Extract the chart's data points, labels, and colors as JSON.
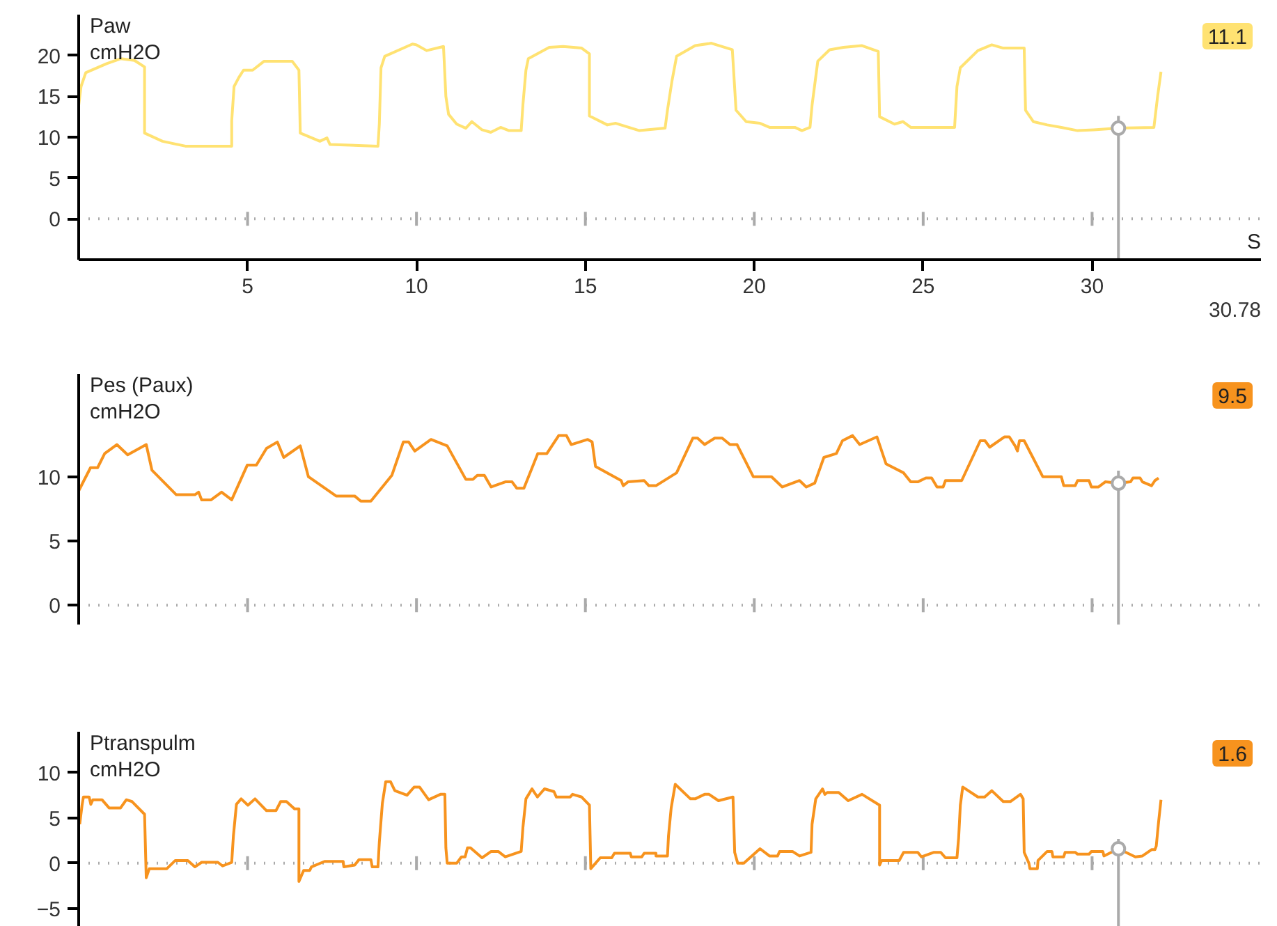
{
  "chart_data": [
    {
      "type": "line",
      "title": "Paw",
      "ylabel": "cmH2O",
      "xlabel": "S",
      "color": "#ffe272",
      "grid": false,
      "marker": "none",
      "line_style": "solid",
      "xlim": [
        0,
        35
      ],
      "ylim": [
        -5,
        25
      ],
      "xticks": [
        5,
        10,
        15,
        20,
        25,
        30
      ],
      "yticks": [
        0,
        5,
        10,
        15,
        20
      ],
      "x": [
        0,
        0.07,
        0.21,
        0.83,
        1.24,
        1.65,
        1.95,
        1.95,
        2.48,
        3.16,
        4.53,
        4.53,
        4.6,
        4.74,
        4.88,
        5.15,
        5.49,
        6.32,
        6.52,
        6.56,
        7.14,
        7.35,
        7.44,
        8.86,
        8.9,
        8.95,
        9.06,
        9.88,
        10.0,
        10.3,
        10.8,
        10.87,
        10.95,
        11.19,
        11.46,
        11.64,
        11.94,
        12.2,
        12.49,
        12.74,
        13.1,
        13.15,
        13.24,
        13.31,
        13.93,
        14.34,
        14.89,
        15.12,
        15.12,
        15.65,
        15.9,
        16.6,
        17.36,
        17.43,
        17.56,
        17.7,
        18.25,
        18.73,
        19.35,
        19.46,
        19.76,
        20.17,
        20.45,
        21.2,
        21.41,
        21.65,
        21.71,
        21.88,
        22.23,
        22.64,
        23.19,
        23.67,
        23.71,
        24.15,
        24.4,
        24.63,
        25.93,
        26.0,
        26.1,
        26.62,
        27.03,
        27.37,
        27.99,
        28.03,
        28.26,
        28.67,
        29.09,
        29.57,
        30.05,
        30.78,
        31.83,
        31.94,
        32.04
      ],
      "values": [
        13.9,
        16.2,
        17.9,
        19.0,
        19.6,
        19.4,
        18.6,
        10.5,
        9.5,
        8.9,
        8.9,
        12,
        16.2,
        17.3,
        18.2,
        18.2,
        19.3,
        19.3,
        18.2,
        10.5,
        9.5,
        9.9,
        9.1,
        8.9,
        11.6,
        18.5,
        19.9,
        21.4,
        21.3,
        20.6,
        21.1,
        15.0,
        12.8,
        11.6,
        11.1,
        11.9,
        10.9,
        10.6,
        11.2,
        10.8,
        10.8,
        13.9,
        18.2,
        19.6,
        21.0,
        21.1,
        20.9,
        20.2,
        12.6,
        11.5,
        11.7,
        10.8,
        11.1,
        13.3,
        16.8,
        19.9,
        21.2,
        21.5,
        20.7,
        13.3,
        11.9,
        11.7,
        11.2,
        11.2,
        10.8,
        11.2,
        13.9,
        19.3,
        20.7,
        21.0,
        21.2,
        20.5,
        12.5,
        11.6,
        11.9,
        11.2,
        11.2,
        16.2,
        18.5,
        20.6,
        21.3,
        20.9,
        20.9,
        13.3,
        11.9,
        11.5,
        11.2,
        10.8,
        10.9,
        11.1,
        11.2,
        15.0,
        18.0
      ],
      "ref_lines": [
        {
          "axis": "y",
          "value": 0,
          "color": "#aaaaaa",
          "line_style": "dotted"
        },
        {
          "axis": "x",
          "value": 30.78,
          "color": "#aaaaaa"
        }
      ],
      "annotations": [
        "11.1",
        "30.78"
      ]
    },
    {
      "type": "line",
      "title": "Pes (Paux)",
      "ylabel": "cmH2O",
      "color": "#f7931e",
      "grid": false,
      "marker": "none",
      "line_style": "solid",
      "tick_labels": "y",
      "xlim": [
        0,
        35
      ],
      "ylim": [
        -1.5,
        18
      ],
      "xticks": [
        {
          "value": 5,
          "label": null
        },
        {
          "value": 10,
          "label": null
        },
        {
          "value": 15,
          "label": null
        },
        {
          "value": 20,
          "label": null
        },
        {
          "value": 25,
          "label": null
        },
        {
          "value": 30,
          "label": null
        }
      ],
      "yticks": [
        0,
        5,
        10
      ],
      "x": [
        0,
        0.35,
        0.56,
        0.77,
        1.13,
        1.45,
        2.0,
        2.17,
        2.89,
        3.44,
        3.55,
        3.64,
        3.92,
        4.23,
        4.53,
        4.99,
        5.26,
        5.56,
        5.88,
        6.07,
        6.56,
        6.8,
        7.62,
        8.17,
        8.35,
        8.65,
        9.27,
        9.61,
        9.77,
        9.95,
        10.43,
        10.91,
        11.46,
        11.67,
        11.8,
        12.01,
        12.21,
        12.63,
        12.83,
        12.97,
        13.18,
        13.59,
        13.86,
        14.21,
        14.44,
        14.58,
        15.07,
        15.2,
        15.3,
        16.06,
        16.12,
        16.26,
        16.74,
        16.88,
        17.09,
        17.7,
        18.18,
        18.32,
        18.53,
        18.83,
        19.05,
        19.28,
        19.49,
        19.97,
        20.51,
        20.83,
        21.34,
        21.54,
        21.79,
        22.06,
        22.43,
        22.61,
        22.91,
        23.12,
        23.63,
        23.9,
        24.42,
        24.63,
        24.84,
        25.08,
        25.25,
        25.41,
        25.59,
        25.66,
        26.14,
        26.69,
        26.83,
        26.97,
        27.41,
        27.55,
        27.72,
        27.79,
        27.85,
        27.99,
        28.54,
        29.09,
        29.16,
        29.5,
        29.57,
        29.91,
        29.98,
        30.19,
        30.39,
        30.78,
        31.14,
        31.21,
        31.42,
        31.49,
        31.76,
        31.86,
        31.97
      ],
      "values": [
        8.9,
        10.7,
        10.7,
        11.8,
        12.5,
        11.7,
        12.5,
        10.5,
        8.6,
        8.6,
        8.8,
        8.2,
        8.2,
        8.8,
        8.2,
        10.9,
        10.9,
        12.2,
        12.7,
        11.5,
        12.4,
        10.0,
        8.5,
        8.5,
        8.1,
        8.1,
        10.1,
        12.7,
        12.7,
        12.0,
        12.9,
        12.4,
        9.8,
        9.8,
        10.1,
        10.1,
        9.2,
        9.6,
        9.6,
        9.1,
        9.1,
        11.8,
        11.8,
        13.2,
        13.2,
        12.5,
        12.9,
        12.7,
        10.8,
        9.7,
        9.3,
        9.6,
        9.7,
        9.3,
        9.3,
        10.3,
        13.0,
        13.0,
        12.5,
        13.0,
        13.0,
        12.5,
        12.5,
        10.0,
        10.0,
        9.2,
        9.7,
        9.2,
        9.5,
        11.5,
        11.8,
        12.8,
        13.2,
        12.5,
        13.1,
        11.0,
        10.3,
        9.6,
        9.6,
        9.9,
        9.9,
        9.2,
        9.2,
        9.7,
        9.7,
        12.8,
        12.8,
        12.3,
        13.1,
        13.1,
        12.4,
        12.0,
        12.8,
        12.8,
        10.0,
        10.0,
        9.3,
        9.3,
        9.7,
        9.7,
        9.2,
        9.2,
        9.6,
        9.5,
        9.6,
        9.9,
        9.9,
        9.6,
        9.3,
        9.7,
        9.9
      ],
      "ref_lines": [
        {
          "axis": "y",
          "value": 0,
          "color": "#aaaaaa",
          "line_style": "dotted"
        },
        {
          "axis": "x",
          "value": 30.78,
          "color": "#aaaaaa"
        }
      ],
      "annotations": [
        "9.5"
      ]
    },
    {
      "type": "line",
      "title": "Ptranspulm",
      "ylabel": "cmH2O",
      "color": "#f7931e",
      "grid": false,
      "marker": "none",
      "line_style": "solid",
      "tick_labels": "y",
      "xlim": [
        0,
        35
      ],
      "ylim": [
        -7,
        14.5
      ],
      "xticks": [
        {
          "value": 5,
          "label": null
        },
        {
          "value": 10,
          "label": null
        },
        {
          "value": 15,
          "label": null
        },
        {
          "value": 20,
          "label": null
        },
        {
          "value": 25,
          "label": null
        },
        {
          "value": 30,
          "label": null
        }
      ],
      "yticks": [
        -5,
        0,
        5,
        10
      ],
      "x": [
        0.03,
        0.1,
        0.14,
        0.31,
        0.36,
        0.42,
        0.69,
        0.9,
        1.24,
        1.41,
        1.58,
        1.95,
        2.0,
        2.09,
        2.61,
        2.86,
        3.23,
        3.44,
        3.64,
        4.12,
        4.26,
        4.53,
        4.58,
        4.67,
        4.81,
        5.01,
        5.22,
        5.56,
        5.84,
        5.98,
        6.15,
        6.39,
        6.52,
        6.52,
        6.66,
        6.84,
        6.89,
        7.28,
        7.83,
        7.85,
        8.17,
        8.3,
        8.65,
        8.69,
        8.86,
        8.9,
        8.99,
        9.09,
        9.23,
        9.36,
        9.72,
        9.93,
        10.09,
        10.36,
        10.71,
        10.84,
        10.87,
        10.91,
        11.19,
        11.33,
        11.44,
        11.51,
        11.6,
        11.94,
        12.21,
        12.42,
        12.63,
        13.1,
        13.15,
        13.24,
        13.42,
        13.58,
        13.79,
        14.07,
        14.14,
        14.55,
        14.62,
        14.89,
        15.12,
        15.16,
        15.44,
        15.78,
        15.86,
        16.33,
        16.36,
        16.67,
        16.74,
        17.09,
        17.09,
        17.43,
        17.46,
        17.54,
        17.66,
        18.11,
        18.25,
        18.53,
        18.66,
        18.94,
        19.37,
        19.42,
        19.51,
        19.69,
        20.17,
        20.45,
        20.69,
        20.75,
        21.13,
        21.34,
        21.68,
        21.71,
        21.82,
        22.02,
        22.09,
        22.16,
        22.5,
        22.78,
        23.19,
        23.71,
        23.71,
        23.77,
        24.29,
        24.42,
        24.84,
        24.95,
        25.32,
        25.52,
        25.66,
        26.0,
        26.05,
        26.1,
        26.17,
        26.62,
        26.82,
        27.03,
        27.37,
        27.58,
        27.88,
        27.96,
        27.99,
        28.13,
        28.16,
        28.38,
        28.4,
        28.67,
        28.81,
        28.84,
        29.16,
        29.2,
        29.5,
        29.57,
        29.91,
        29.98,
        30.32,
        30.35,
        30.78,
        31.28,
        31.49,
        31.76,
        31.86,
        31.9,
        31.97,
        32.04
      ],
      "values": [
        4.3,
        6.4,
        7.3,
        7.3,
        6.5,
        7.0,
        7.0,
        6.1,
        6.1,
        7.0,
        6.8,
        5.4,
        -1.6,
        -0.6,
        -0.6,
        0.3,
        0.3,
        -0.4,
        0.1,
        0.1,
        -0.3,
        0.1,
        3.0,
        6.5,
        7.1,
        6.4,
        7.1,
        5.8,
        5.8,
        6.8,
        6.8,
        6.0,
        6.0,
        -2.0,
        -0.8,
        -0.8,
        -0.4,
        0.2,
        0.2,
        -0.4,
        -0.2,
        0.4,
        0.4,
        -0.4,
        -0.4,
        2.3,
        6.6,
        9.0,
        9.0,
        8.0,
        7.5,
        8.4,
        8.4,
        7.0,
        7.6,
        7.6,
        1.7,
        0.0,
        0.0,
        0.7,
        0.7,
        1.7,
        1.7,
        0.6,
        1.3,
        1.3,
        0.7,
        1.3,
        3.9,
        7.1,
        8.2,
        7.3,
        8.2,
        7.9,
        7.3,
        7.3,
        7.6,
        7.3,
        6.4,
        -0.6,
        0.6,
        0.6,
        1.1,
        1.1,
        0.7,
        0.7,
        1.1,
        1.1,
        0.8,
        0.8,
        3.0,
        6.1,
        8.7,
        7.1,
        7.1,
        7.6,
        7.6,
        6.9,
        7.3,
        1.2,
        0.0,
        0.0,
        1.6,
        0.8,
        0.8,
        1.3,
        1.3,
        0.8,
        1.2,
        4.3,
        7.1,
        8.2,
        7.6,
        7.8,
        7.8,
        6.9,
        7.6,
        6.4,
        -0.2,
        0.3,
        0.3,
        1.2,
        1.2,
        0.7,
        1.2,
        1.2,
        0.6,
        0.6,
        2.8,
        6.4,
        8.4,
        7.3,
        7.3,
        8.0,
        6.8,
        6.8,
        7.6,
        7.1,
        1.2,
        0.0,
        -0.6,
        -0.6,
        0.3,
        1.3,
        1.3,
        0.7,
        0.7,
        1.2,
        1.2,
        1.0,
        1.0,
        1.3,
        1.3,
        0.8,
        1.6,
        0.7,
        0.8,
        1.5,
        1.5,
        1.9,
        4.6,
        7.0
      ],
      "ref_lines": [
        {
          "axis": "y",
          "value": 0,
          "color": "#aaaaaa",
          "line_style": "dotted"
        },
        {
          "axis": "x",
          "value": 30.78,
          "color": "#aaaaaa"
        }
      ],
      "annotations": [
        "1.6"
      ]
    }
  ]
}
